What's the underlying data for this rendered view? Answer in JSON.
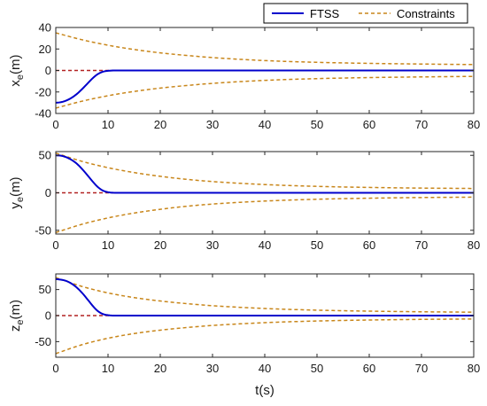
{
  "chart_data": [
    {
      "type": "line",
      "panel": "xe",
      "ylabel_base": "x",
      "ylabel_sub": "e",
      "ylabel_unit": "(m)",
      "xlim": [
        0,
        80
      ],
      "ylim": [
        -40,
        40
      ],
      "xticks": [
        0,
        10,
        20,
        30,
        40,
        50,
        60,
        70,
        80
      ],
      "yticks": [
        -40,
        -20,
        0,
        20,
        40
      ],
      "grid": false,
      "series": [
        {
          "name": "FTSS",
          "style": "solid",
          "color": "#0000cc",
          "x": [
            0,
            1,
            2,
            3,
            4,
            5,
            6,
            7,
            8,
            9,
            10,
            11,
            12,
            20,
            80
          ],
          "y": [
            -30,
            -29.5,
            -28,
            -25.5,
            -22,
            -17.5,
            -12.5,
            -7.5,
            -3.5,
            -1.2,
            -0.3,
            -0.05,
            0,
            0,
            0
          ]
        },
        {
          "name": "Constraints",
          "style": "dashed",
          "color": "#c8861a",
          "x": [
            0,
            5,
            10,
            15,
            20,
            25,
            30,
            40,
            50,
            60,
            70,
            80
          ],
          "y": [
            35,
            28.6,
            23.5,
            19.5,
            16.4,
            14,
            12,
            9.2,
            7.6,
            6.6,
            6,
            5.5
          ]
        },
        {
          "name": "",
          "style": "dashed",
          "color": "#c8861a",
          "x": [
            0,
            5,
            10,
            15,
            20,
            25,
            30,
            40,
            50,
            60,
            70,
            80
          ],
          "y": [
            -35,
            -28.6,
            -23.5,
            -19.5,
            -16.4,
            -14,
            -12,
            -9.2,
            -7.6,
            -6.6,
            -6,
            -5.5
          ]
        },
        {
          "name": "",
          "style": "dashed",
          "color": "#b22222",
          "x": [
            0,
            80
          ],
          "y": [
            0,
            0
          ]
        }
      ]
    },
    {
      "type": "line",
      "panel": "ye",
      "ylabel_base": "y",
      "ylabel_sub": "e",
      "ylabel_unit": "(m)",
      "xlim": [
        0,
        80
      ],
      "ylim": [
        -55,
        55
      ],
      "xticks": [
        0,
        10,
        20,
        30,
        40,
        50,
        60,
        70,
        80
      ],
      "yticks": [
        -50,
        0,
        50
      ],
      "grid": false,
      "series": [
        {
          "name": "FTSS",
          "style": "solid",
          "color": "#0000cc",
          "x": [
            0,
            1,
            2,
            3,
            4,
            5,
            6,
            7,
            8,
            9,
            10,
            11,
            12,
            20,
            80
          ],
          "y": [
            50,
            49.5,
            47.5,
            44,
            39,
            32,
            24,
            15.5,
            8,
            3,
            0.8,
            0.1,
            0,
            0,
            0
          ]
        },
        {
          "name": "Constraints",
          "style": "dashed",
          "color": "#c8861a",
          "x": [
            0,
            5,
            10,
            15,
            20,
            25,
            30,
            40,
            50,
            60,
            70,
            80
          ],
          "y": [
            53,
            42,
            33.5,
            27,
            22,
            18,
            15,
            11,
            8.6,
            7.2,
            6.3,
            5.8
          ]
        },
        {
          "name": "",
          "style": "dashed",
          "color": "#c8861a",
          "x": [
            0,
            5,
            10,
            15,
            20,
            25,
            30,
            40,
            50,
            60,
            70,
            80
          ],
          "y": [
            -53,
            -42,
            -33.5,
            -27,
            -22,
            -18,
            -15,
            -11,
            -8.6,
            -7.2,
            -6.3,
            -5.8
          ]
        },
        {
          "name": "",
          "style": "dashed",
          "color": "#b22222",
          "x": [
            0,
            80
          ],
          "y": [
            0,
            0
          ]
        }
      ]
    },
    {
      "type": "line",
      "panel": "ze",
      "ylabel_base": "z",
      "ylabel_sub": "e",
      "ylabel_unit": "(m)",
      "xlabel": "t(s)",
      "xlim": [
        0,
        80
      ],
      "ylim": [
        -80,
        80
      ],
      "xticks": [
        0,
        10,
        20,
        30,
        40,
        50,
        60,
        70,
        80
      ],
      "yticks": [
        -50,
        0,
        50
      ],
      "grid": false,
      "series": [
        {
          "name": "FTSS",
          "style": "solid",
          "color": "#0000cc",
          "x": [
            0,
            1,
            2,
            3,
            4,
            5,
            6,
            7,
            8,
            9,
            10,
            11,
            12,
            20,
            80
          ],
          "y": [
            70,
            69,
            66.5,
            61.5,
            54,
            44,
            32,
            19.5,
            9,
            3,
            0.8,
            0.1,
            0,
            0,
            0
          ]
        },
        {
          "name": "Constraints",
          "style": "dashed",
          "color": "#c8861a",
          "x": [
            0,
            5,
            10,
            15,
            20,
            25,
            30,
            40,
            50,
            60,
            70,
            80
          ],
          "y": [
            73,
            56,
            43.5,
            34.5,
            28,
            23,
            19,
            13.6,
            10.4,
            8.5,
            7.3,
            6.5
          ]
        },
        {
          "name": "",
          "style": "dashed",
          "color": "#c8861a",
          "x": [
            0,
            5,
            10,
            15,
            20,
            25,
            30,
            40,
            50,
            60,
            70,
            80
          ],
          "y": [
            -73,
            -56,
            -43.5,
            -34.5,
            -28,
            -23,
            -19,
            -13.6,
            -10.4,
            -8.5,
            -7.3,
            -6.5
          ]
        },
        {
          "name": "",
          "style": "dashed",
          "color": "#b22222",
          "x": [
            0,
            80
          ],
          "y": [
            0,
            0
          ]
        }
      ]
    }
  ],
  "legend": {
    "placement": "top-right",
    "items": [
      {
        "label": "FTSS",
        "style": "solid",
        "color": "#0000cc"
      },
      {
        "label": "Constraints",
        "style": "dashed",
        "color": "#c8861a"
      }
    ]
  }
}
